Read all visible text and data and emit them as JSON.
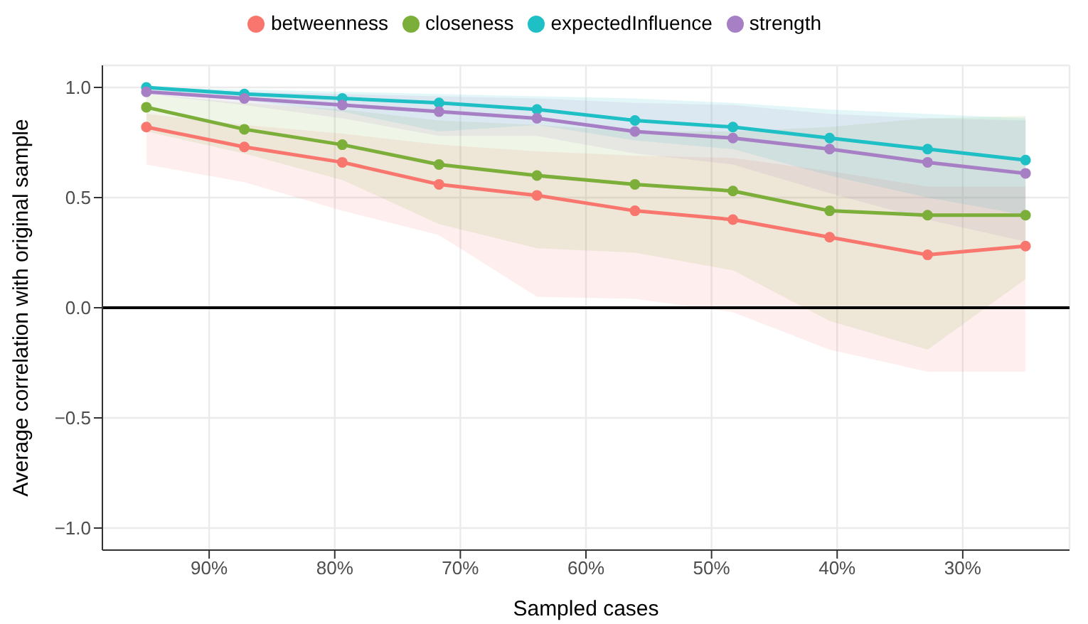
{
  "chart_data": {
    "type": "line",
    "xlabel": "Sampled cases",
    "ylabel": "Average correlation with original sample",
    "x": [
      95,
      87.2,
      79.4,
      71.7,
      63.9,
      56.1,
      48.3,
      40.6,
      32.8,
      25
    ],
    "series": [
      {
        "name": "betweenness",
        "color": "#f8766d",
        "values": [
          0.82,
          0.73,
          0.66,
          0.56,
          0.51,
          0.44,
          0.4,
          0.32,
          0.24,
          0.28
        ],
        "lower": [
          0.65,
          0.57,
          0.44,
          0.33,
          0.05,
          0.04,
          -0.02,
          -0.19,
          -0.29,
          -0.29
        ],
        "upper": [
          0.88,
          0.83,
          0.79,
          0.74,
          0.71,
          0.69,
          0.68,
          0.62,
          0.55,
          0.55
        ]
      },
      {
        "name": "closeness",
        "color": "#7cae3a",
        "values": [
          0.91,
          0.81,
          0.74,
          0.65,
          0.6,
          0.56,
          0.53,
          0.44,
          0.42,
          0.42
        ],
        "lower": [
          0.8,
          0.7,
          0.58,
          0.38,
          0.27,
          0.25,
          0.17,
          -0.06,
          -0.19,
          0.13
        ],
        "upper": [
          0.97,
          0.93,
          0.9,
          0.85,
          0.83,
          0.8,
          0.8,
          0.82,
          0.86,
          0.87
        ]
      },
      {
        "name": "expectedInfluence",
        "color": "#1fbfc6",
        "values": [
          1,
          0.97,
          0.95,
          0.93,
          0.9,
          0.85,
          0.82,
          0.77,
          0.72,
          0.67
        ],
        "lower": [
          0.98,
          0.94,
          0.89,
          0.8,
          0.83,
          0.76,
          0.72,
          0.6,
          0.5,
          0.42
        ],
        "upper": [
          1,
          0.99,
          0.98,
          0.97,
          0.96,
          0.95,
          0.93,
          0.9,
          0.88,
          0.86
        ]
      },
      {
        "name": "strength",
        "color": "#a67fc4",
        "values": [
          0.98,
          0.95,
          0.92,
          0.89,
          0.86,
          0.8,
          0.77,
          0.72,
          0.66,
          0.61
        ],
        "lower": [
          0.97,
          0.92,
          0.86,
          0.78,
          0.78,
          0.7,
          0.65,
          0.52,
          0.4,
          0.3
        ],
        "upper": [
          1,
          0.98,
          0.97,
          0.96,
          0.95,
          0.93,
          0.92,
          0.88,
          0.86,
          0.85
        ]
      }
    ],
    "xlim": [
      98.5,
      21.5
    ],
    "xticks": [
      {
        "value": 90,
        "label": "90%"
      },
      {
        "value": 80,
        "label": "80%"
      },
      {
        "value": 70,
        "label": "70%"
      },
      {
        "value": 60,
        "label": "60%"
      },
      {
        "value": 50,
        "label": "50%"
      },
      {
        "value": 40,
        "label": "40%"
      },
      {
        "value": 30,
        "label": "30%"
      }
    ],
    "ylim": [
      -1.1,
      1.1
    ],
    "yticks": [
      {
        "value": -1,
        "label": "−1.0"
      },
      {
        "value": -0.5,
        "label": "−0.5"
      },
      {
        "value": 0,
        "label": "0.0"
      },
      {
        "value": 0.5,
        "label": "0.5"
      },
      {
        "value": 1,
        "label": "1.0"
      }
    ],
    "ref_lines": [
      {
        "axis": "y",
        "value": 0,
        "color": "#000000"
      }
    ],
    "grid": true,
    "legend": "top",
    "marker": "circle",
    "line_style": "solid"
  }
}
